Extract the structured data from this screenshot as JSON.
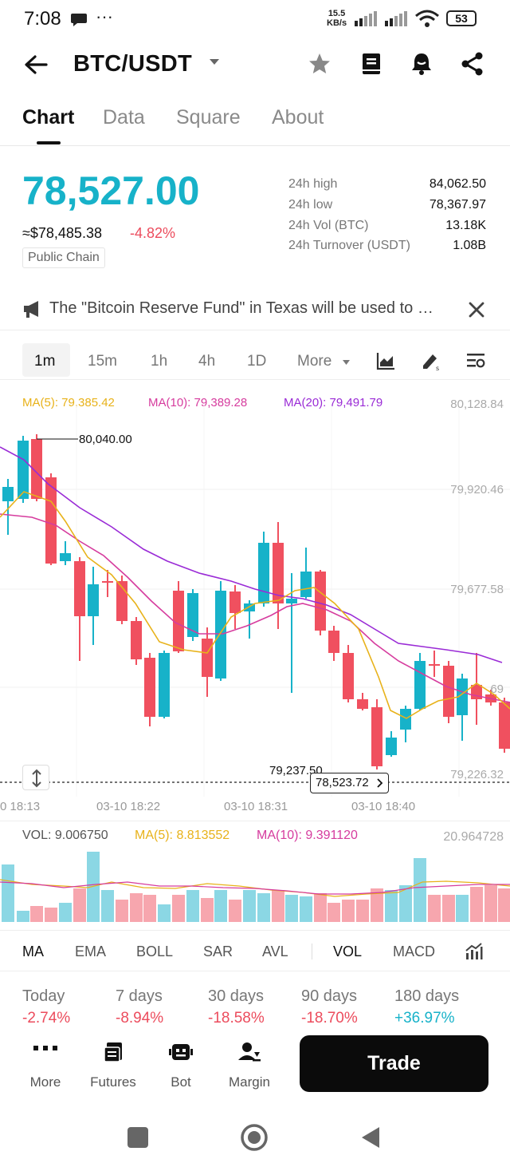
{
  "status": {
    "time": "7:08",
    "speed_value": "15.5",
    "speed_unit": "KB/s",
    "battery": "53"
  },
  "header": {
    "pair": "BTC/USDT"
  },
  "tabs": [
    "Chart",
    "Data",
    "Square",
    "About"
  ],
  "ticker": {
    "price": "78,527.00",
    "approx": "≈$78,485.38",
    "change": "-4.82%",
    "chip": "Public Chain",
    "stats": [
      {
        "label": "24h high",
        "value": "84,062.50"
      },
      {
        "label": "24h low",
        "value": "78,367.97"
      },
      {
        "label": "24h Vol (BTC)",
        "value": "13.18K"
      },
      {
        "label": "24h Turnover (USDT)",
        "value": "1.08B"
      }
    ]
  },
  "news": {
    "text": "The \"Bitcoin Reserve Fund\" in Texas will be used to purchase Bitcoin"
  },
  "timeframes": [
    "1m",
    "15m",
    "1h",
    "4h",
    "1D",
    "More"
  ],
  "chart": {
    "ma5": "MA(5): 79,385.42",
    "ma10": "MA(10): 79,389.28",
    "ma20": "MA(20): 79,491.79",
    "y_labels": [
      "80,128.84",
      "79,920.46",
      "79,677.58",
      "69",
      "79,226.32"
    ],
    "high_label": "80,040.00",
    "low_label": "79,237.50",
    "current_price": "78,523.72",
    "x_labels": [
      "0 18:13",
      "03-10 18:22",
      "03-10 18:31",
      "03-10 18:40"
    ],
    "colors": {
      "up": "#17b2c9",
      "down": "#f0505f",
      "ma5": "#e8b21a",
      "ma10": "#d63c9e",
      "ma20": "#9a2bd6"
    }
  },
  "volume": {
    "vol": "VOL: 9.006750",
    "ma5": "MA(5): 8.813552",
    "ma10": "MA(10): 9.391120",
    "max": "20.964728"
  },
  "indicators": [
    "MA",
    "EMA",
    "BOLL",
    "SAR",
    "AVL",
    "VOL",
    "MACD"
  ],
  "performance": [
    {
      "label": "Today",
      "value": "-2.74%"
    },
    {
      "label": "7 days",
      "value": "-8.94%"
    },
    {
      "label": "30 days",
      "value": "-18.58%"
    },
    {
      "label": "90 days",
      "value": "-18.70%"
    },
    {
      "label": "180 days",
      "value": "+36.97%"
    }
  ],
  "actions": [
    "More",
    "Futures",
    "Bot",
    "Margin"
  ],
  "trade_label": "Trade",
  "icons": [
    "back-arrow-icon",
    "caret-down-icon",
    "star-icon",
    "book-icon",
    "bell-icon",
    "share-icon",
    "megaphone-icon",
    "close-icon"
  ]
}
